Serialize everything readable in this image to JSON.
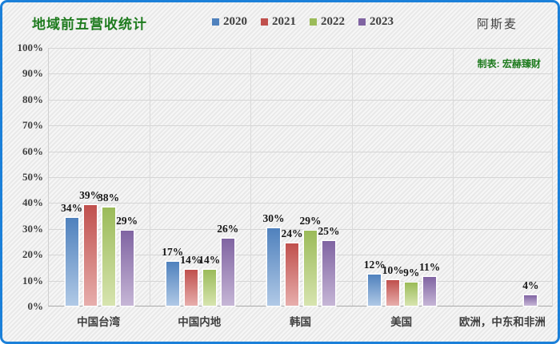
{
  "header": {
    "title": "地域前五营收统计",
    "company": "阿斯麦",
    "credit": "制表: 宏赫臻财"
  },
  "colors": {
    "frame_border": "#1b80d9",
    "title_green": "#1e7b1e",
    "text_dark": "#3f3f3f"
  },
  "chart_data": {
    "type": "bar",
    "title": "地域前五营收统计",
    "categories": [
      "中国台湾",
      "中国内地",
      "韩国",
      "美国",
      "欧洲，中东和非洲"
    ],
    "series": [
      {
        "name": "2020",
        "color": "#4f81bd",
        "color_light": "#b0c9e6",
        "values": [
          34,
          17,
          30,
          12,
          null
        ]
      },
      {
        "name": "2021",
        "color": "#c0504d",
        "color_light": "#e7aeac",
        "values": [
          39,
          14,
          24,
          10,
          null
        ]
      },
      {
        "name": "2022",
        "color": "#9bbb59",
        "color_light": "#d7e4af",
        "values": [
          38,
          14,
          29,
          9,
          null
        ]
      },
      {
        "name": "2023",
        "color": "#8064a2",
        "color_light": "#c6b6d6",
        "values": [
          29,
          26,
          25,
          11,
          4
        ]
      }
    ],
    "yticks": [
      "100%",
      "90%",
      "80%",
      "70%",
      "60%",
      "50%",
      "40%",
      "30%",
      "20%",
      "10%",
      "0%"
    ],
    "ylim": [
      0,
      100
    ],
    "value_suffix": "%",
    "grid": true,
    "legend_position": "top"
  }
}
